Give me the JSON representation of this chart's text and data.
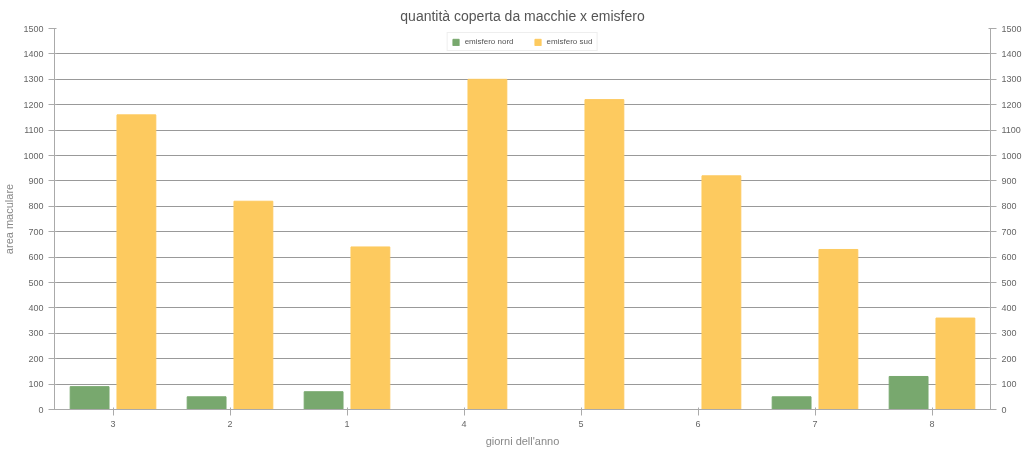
{
  "chart_data": {
    "type": "bar",
    "title": "quantità coperta da macchie x emisfero",
    "xlabel": "giorni dell'anno",
    "ylabel": "area maculare",
    "categories": [
      "3",
      "2",
      "1",
      "4",
      "5",
      "6",
      "7",
      "8"
    ],
    "series": [
      {
        "name": "emisfero nord",
        "color": "#78a86e",
        "values": [
          90,
          50,
          70,
          0,
          0,
          0,
          50,
          130
        ]
      },
      {
        "name": "emisfero sud",
        "color": "#fdca5f",
        "values": [
          1160,
          820,
          640,
          1300,
          1220,
          920,
          630,
          360
        ]
      }
    ],
    "ylim": [
      0,
      1500
    ],
    "yticks": [
      0,
      100,
      200,
      300,
      400,
      500,
      600,
      700,
      800,
      900,
      1000,
      1100,
      1200,
      1300,
      1400,
      1500
    ],
    "y2lim": [
      0,
      1500
    ],
    "y2ticks": [
      0,
      100,
      200,
      300,
      400,
      500,
      600,
      700,
      800,
      900,
      1000,
      1100,
      1200,
      1300,
      1400,
      1500
    ],
    "grid": "y",
    "legend": "top"
  }
}
